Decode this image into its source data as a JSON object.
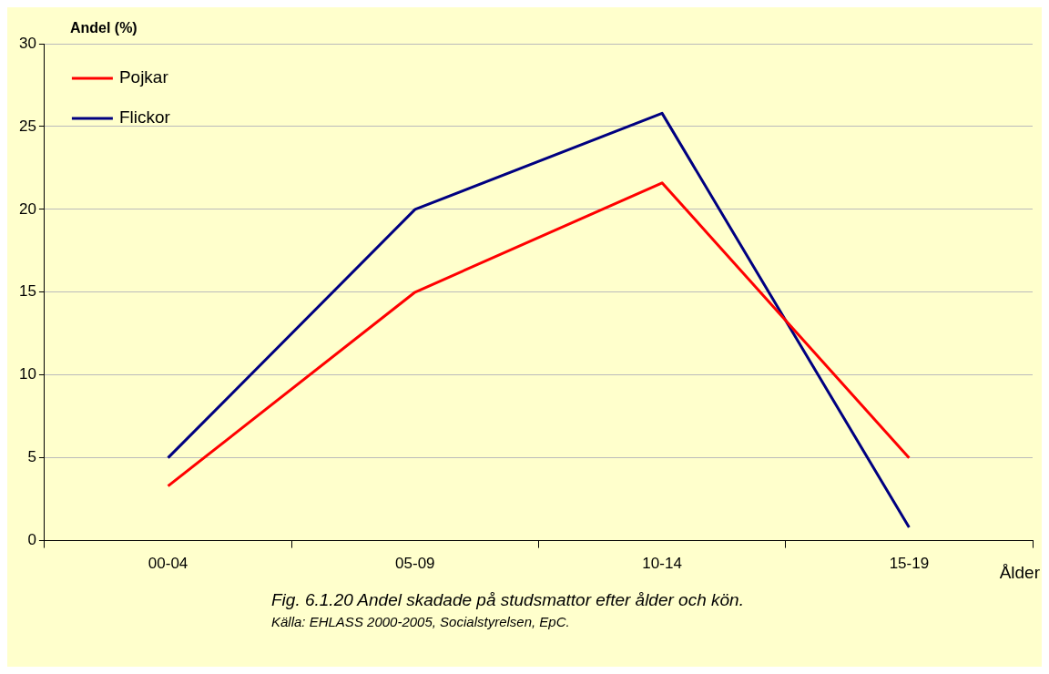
{
  "chart_data": {
    "type": "line",
    "ylabel": "Andel (%)",
    "xlabel": "Ålder",
    "categories": [
      "00-04",
      "05-09",
      "10-14",
      "15-19"
    ],
    "series": [
      {
        "name": "Pojkar",
        "color": "#ff0000",
        "values": [
          3.3,
          15,
          21.6,
          5
        ]
      },
      {
        "name": "Flickor",
        "color": "#000080",
        "values": [
          5,
          20,
          25.8,
          0.8
        ]
      }
    ],
    "ylim": [
      0,
      30
    ],
    "yticks": [
      0,
      5,
      10,
      15,
      20,
      25,
      30
    ],
    "grid": "y",
    "legend": "top left",
    "marker": "none",
    "line_style": "solid",
    "annotations": [
      "Fig. 6.1.20  Andel skadade på studsmattor efter ålder och kön.",
      "Källa: EHLASS 2000-2005, Socialstyrelsen, EpC."
    ]
  }
}
